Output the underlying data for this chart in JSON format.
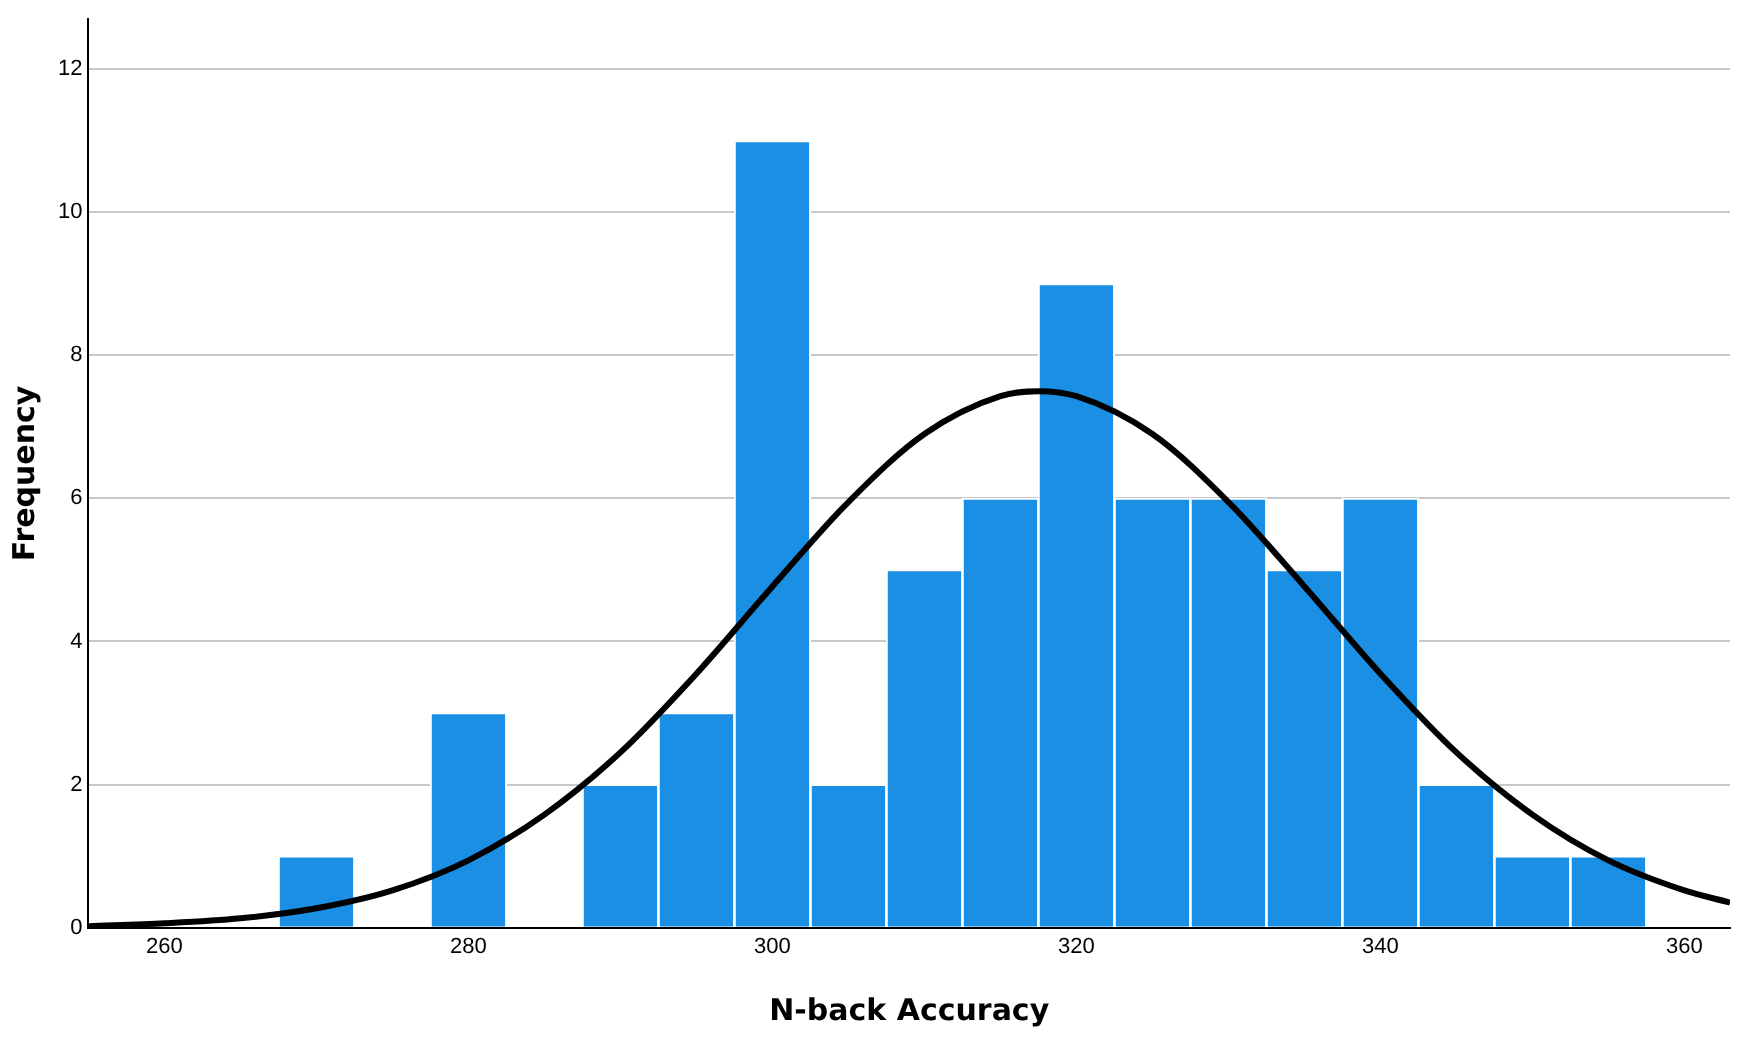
{
  "chart_data": {
    "type": "histogram",
    "xlabel": "N-back Accuracy",
    "ylabel": "Frequency",
    "series": [
      {
        "color": "#1a8fe3",
        "bins": [
          267.5,
          272.5,
          277.5,
          282.5,
          287.5,
          292.5,
          297.5,
          302.5,
          307.5,
          312.5,
          317.5,
          322.5,
          327.5,
          332.5,
          337.5,
          342.5,
          347.5,
          352.5,
          357.5
        ],
        "values": [
          1,
          0,
          3,
          0,
          2,
          3,
          11,
          2,
          5,
          6,
          9,
          6,
          6,
          5,
          6,
          2,
          1,
          1
        ]
      },
      {
        "type": "line",
        "color": "#000000",
        "x": [
          255,
          260,
          265,
          270,
          275,
          280,
          285,
          290,
          295,
          300,
          305,
          310,
          315,
          317.5,
          320,
          325,
          330,
          335,
          340,
          345,
          350,
          355,
          360,
          363
        ],
        "values": [
          0.02,
          0.06,
          0.13,
          0.27,
          0.52,
          0.94,
          1.58,
          2.45,
          3.55,
          4.77,
          5.95,
          6.9,
          7.43,
          7.5,
          7.43,
          6.9,
          5.95,
          4.77,
          3.55,
          2.45,
          1.58,
          0.94,
          0.52,
          0.35
        ]
      }
    ],
    "xlim": [
      255,
      363
    ],
    "xticks": [
      260,
      280,
      300,
      320,
      340,
      360
    ],
    "ylim": [
      0,
      12.7
    ],
    "yticks": [
      0,
      2,
      4,
      6,
      8,
      10,
      12
    ],
    "grid": "y",
    "legend": false,
    "marker": "none",
    "line_style": "solid"
  }
}
